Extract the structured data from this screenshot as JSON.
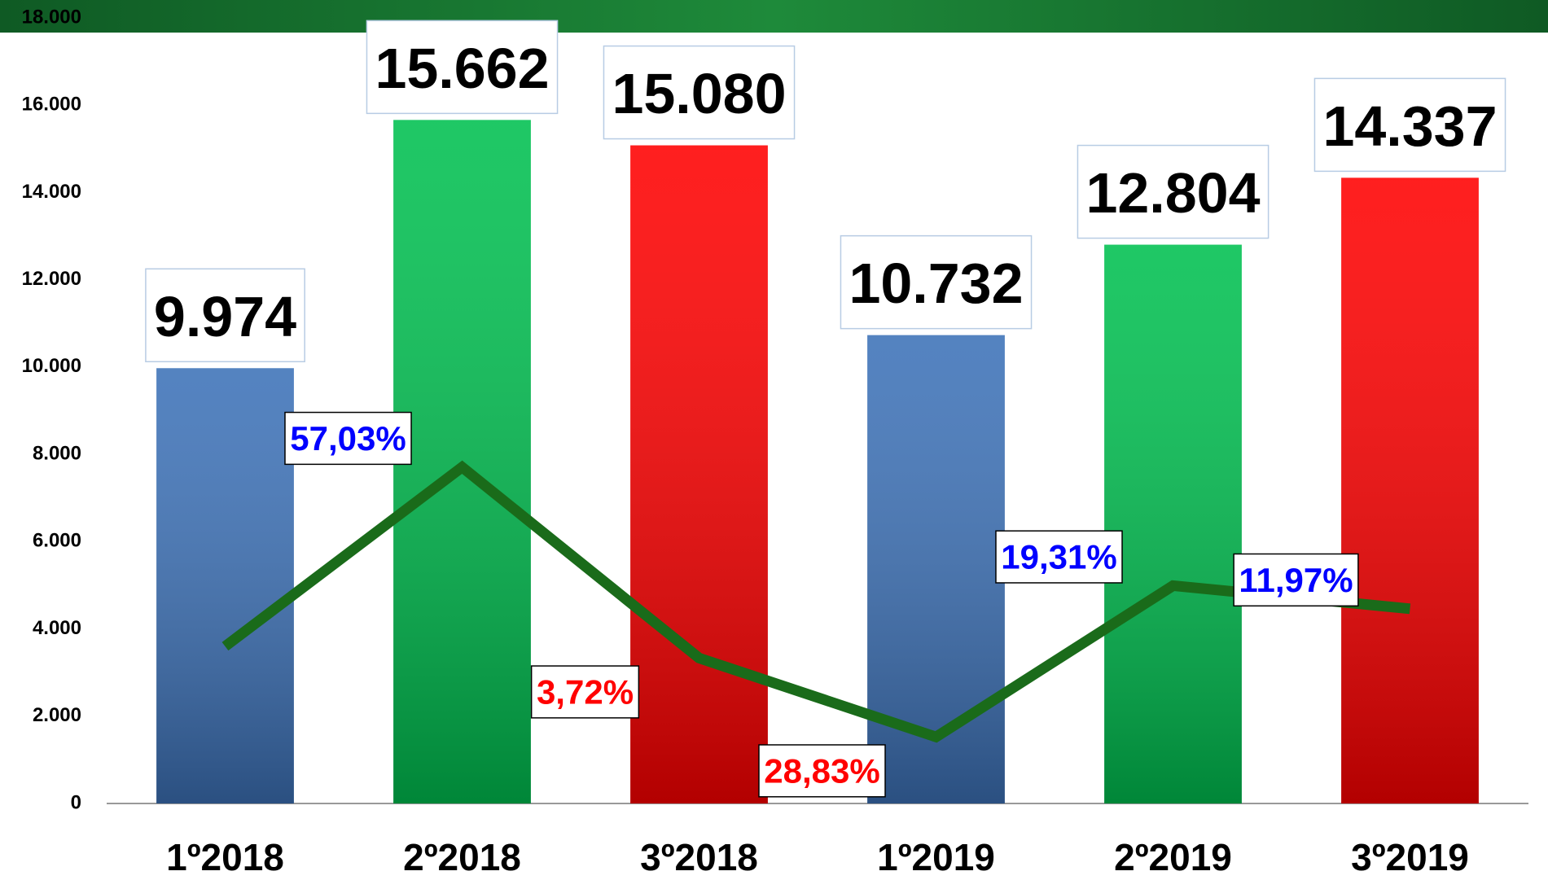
{
  "chart_data": {
    "type": "bar",
    "categories": [
      "1º2018",
      "2º2018",
      "3º2018",
      "1º2019",
      "2º2019",
      "3º2019"
    ],
    "values": [
      9974,
      15662,
      15080,
      10732,
      12804,
      14337
    ],
    "value_labels": [
      "9.974",
      "15.662",
      "15.080",
      "10.732",
      "12.804",
      "14.337"
    ],
    "colors": [
      "#3d72b8",
      "#00c050",
      "#ff0000",
      "#3d72b8",
      "#00c050",
      "#ff0000"
    ],
    "ylim": [
      0,
      18000
    ],
    "yticks": [
      0,
      {
        "value": 2000,
        "label": "2.000"
      },
      {
        "value": 4000,
        "label": "4.000"
      },
      {
        "value": 6000,
        "label": "6.000"
      },
      {
        "value": 8000,
        "label": "8.000"
      },
      {
        "value": 10000,
        "label": "10.000"
      },
      {
        "value": 12000,
        "label": "12.000"
      },
      {
        "value": 14000,
        "label": "14.000"
      },
      {
        "value": 16000,
        "label": "16.000"
      },
      {
        "value": 18000,
        "label": "18.000"
      }
    ],
    "y2lim": [
      -50,
      200
    ],
    "series": [
      {
        "type": "line",
        "axis": "y2",
        "color": "#1a6b1a",
        "values": [
          0,
          57.03,
          -3.72,
          -28.83,
          19.31,
          11.97
        ],
        "value_labels": [
          null,
          "57,03%",
          "3,72%",
          "28,83%",
          "19,31%",
          "11,97%"
        ],
        "label_colors": {
          "positive": "#0000ff",
          "negative": "#ff0000"
        }
      }
    ]
  }
}
